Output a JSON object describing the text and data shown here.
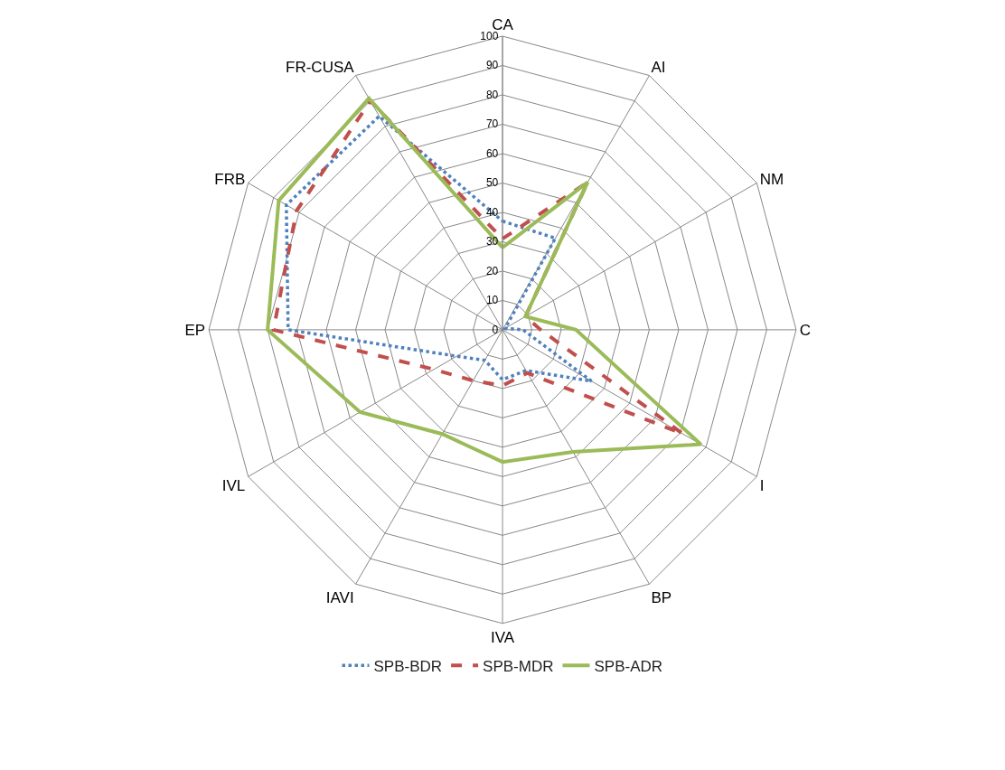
{
  "chart_data": {
    "type": "radar",
    "categories": [
      "CA",
      "AI",
      "NM",
      "C",
      "I",
      "BP",
      "IVA",
      "IAVI",
      "IVL",
      "EP",
      "FRB",
      "FR-CUSA"
    ],
    "series": [
      {
        "name": "SPB-BDR",
        "color": "#4f81bd",
        "line_style": "dotted",
        "values": [
          37,
          36,
          1,
          7,
          35,
          16,
          17,
          12,
          18,
          73,
          85,
          84
        ]
      },
      {
        "name": "SPB-MDR",
        "color": "#c0504d",
        "line_style": "dashed",
        "values": [
          31,
          58,
          9,
          13,
          71,
          17,
          19,
          20,
          27,
          78,
          81,
          90
        ]
      },
      {
        "name": "SPB-ADR",
        "color": "#9bbb59",
        "line_style": "solid",
        "values": [
          28,
          58,
          9,
          25,
          78,
          48,
          45,
          41,
          56,
          80,
          88,
          91
        ]
      }
    ],
    "ylim": [
      0,
      100
    ],
    "yticks": [
      0,
      10,
      20,
      30,
      40,
      50,
      60,
      70,
      80,
      90,
      100
    ],
    "grid": true,
    "legend": "bottom",
    "marker": "none"
  }
}
